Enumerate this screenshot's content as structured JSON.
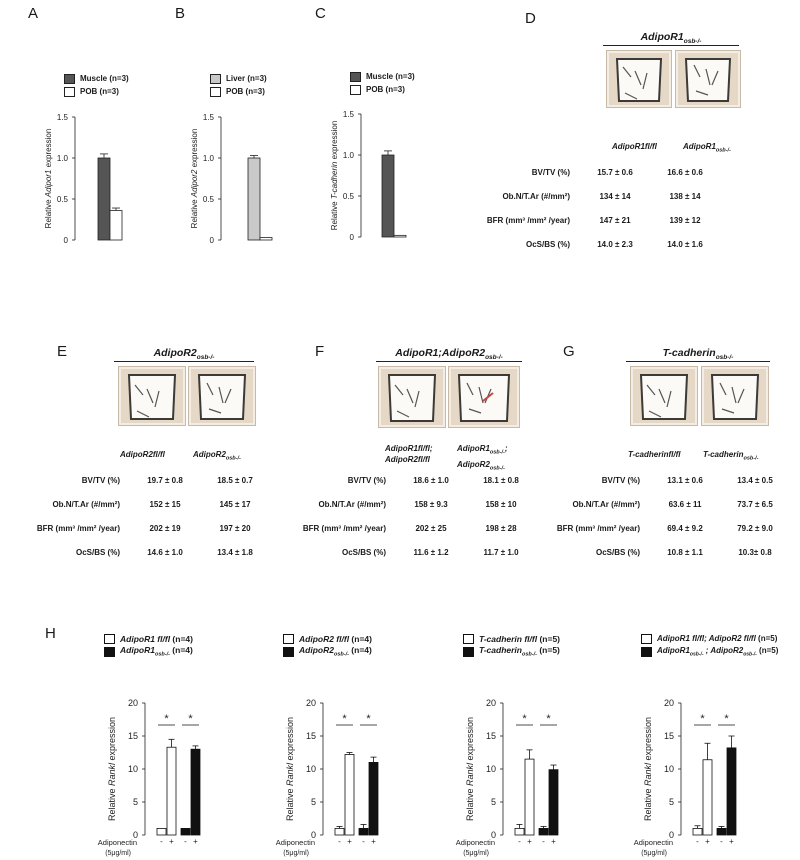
{
  "panel_letters": {
    "A": "A",
    "B": "B",
    "C": "C",
    "D": "D",
    "E": "E",
    "F": "F",
    "G": "G",
    "H": "H"
  },
  "panel_A": {
    "legend": [
      "Muscle (n=3)",
      "POB (n=3)"
    ],
    "ylabel_pre": "Relative ",
    "ylabel_gene": "Adipor1",
    "ylabel_post": " expression"
  },
  "panel_B": {
    "legend": [
      "Liver (n=3)",
      "POB (n=3)"
    ],
    "ylabel_pre": "Relative ",
    "ylabel_gene": "Adipor2",
    "ylabel_post": " expression"
  },
  "panel_C": {
    "legend": [
      "Muscle (n=3)",
      "POB (n=3)"
    ],
    "ylabel_pre": "Relative ",
    "ylabel_gene": "T-cadherin",
    "ylabel_post": " expression"
  },
  "panel_D": {
    "header_main": "AdipoR1",
    "header_sub": "osb-/-",
    "col1": "AdipoR1fl/fl",
    "col2_main": "AdipoR1",
    "col2_sub": "osb-/-",
    "rows": [
      {
        "label": "BV/TV (%)",
        "v1": "15.7 ± 0.6",
        "v2": "16.6 ± 0.6"
      },
      {
        "label": "Ob.N/T.Ar (#/mm²)",
        "v1": "134 ± 14",
        "v2": "138 ± 14"
      },
      {
        "label": "BFR (mm³ /mm² /year)",
        "v1": "147 ± 21",
        "v2": "139 ± 12"
      },
      {
        "label": "OcS/BS (%)",
        "v1": "14.0 ± 2.3",
        "v2": "14.0 ± 1.6"
      }
    ]
  },
  "panel_E": {
    "header_main": "AdipoR2",
    "header_sub": "osb-/-",
    "col1": "AdipoR2fl/fl",
    "col2_main": "AdipoR2",
    "col2_sub": "osb-/-",
    "rows": [
      {
        "label": "BV/TV (%)",
        "v1": "19.7 ± 0.8",
        "v2": "18.5 ± 0.7"
      },
      {
        "label": "Ob.N/T.Ar (#/mm²)",
        "v1": "152 ± 15",
        "v2": "145 ± 17"
      },
      {
        "label": "BFR (mm³ /mm² /year)",
        "v1": "202 ± 19",
        "v2": "197 ± 20"
      },
      {
        "label": "OcS/BS (%)",
        "v1": "14.6 ± 1.0",
        "v2": "13.4 ± 1.8"
      }
    ]
  },
  "panel_F": {
    "header_main": "AdipoR1;AdipoR2",
    "header_sub": "osb-/-",
    "col1_line1": "AdipoR1fl/fl;",
    "col1_line2": "AdipoR2fl/fl",
    "col2_line1_main": "AdipoR1",
    "col2_line1_sub": "osb-/-",
    "col2_line1_end": ";",
    "col2_line2_main": "AdipoR2",
    "col2_line2_sub": "osb-/-",
    "rows": [
      {
        "label": "BV/TV (%)",
        "v1": "18.6 ± 1.0",
        "v2": "18.1 ± 0.8"
      },
      {
        "label": "Ob.N/T.Ar (#/mm²)",
        "v1": "158 ± 9.3",
        "v2": "158 ± 10"
      },
      {
        "label": "BFR (mm³ /mm² /year)",
        "v1": "202 ± 25",
        "v2": "198 ± 28"
      },
      {
        "label": "OcS/BS (%)",
        "v1": "11.6 ± 1.2",
        "v2": "11.7 ± 1.0"
      }
    ]
  },
  "panel_G": {
    "header_main": "T-cadherin",
    "header_sub": "osb-/-",
    "col1": "T-cadherinfl/fl",
    "col2_main": "T-cadherin",
    "col2_sub": "osb-/-",
    "rows": [
      {
        "label": "BV/TV (%)",
        "v1": "13.1 ± 0.6",
        "v2": "13.4 ± 0.5"
      },
      {
        "label": "Ob.N/T.Ar (#/mm²)",
        "v1": "63.6 ± 11",
        "v2": "73.7 ± 6.5"
      },
      {
        "label": "BFR (mm³ /mm² /year)",
        "v1": "69.4 ± 9.2",
        "v2": "79.2 ± 9.0"
      },
      {
        "label": "OcS/BS (%)",
        "v1": "10.8 ± 1.1",
        "v2": "10.3± 0.8"
      }
    ]
  },
  "panel_H_common": {
    "ylabel_pre": "Relative ",
    "ylabel_gene": "Rankl",
    "ylabel_post": " expression",
    "xlabel_line1": "Adiponectin",
    "xlabel_line2": "(5μg/ml)",
    "sig": "*",
    "minus": "-",
    "plus": "+"
  },
  "panel_H_legends": [
    {
      "l1_main": "AdipoR1 fl/fl",
      "l1_end": "  (n=4)",
      "l2_main": "AdipoR1",
      "l2_sub": "osb-/-",
      "l2_end": "  (n=4)"
    },
    {
      "l1_main": "AdipoR2 fl/fl",
      "l1_end": " (n=4)",
      "l2_main": "AdipoR2",
      "l2_sub": "osb-/-",
      "l2_end": " (n=4)"
    },
    {
      "l1_main": "T-cadherin fl/fl",
      "l1_end": "  (n=5)",
      "l2_main": "T-cadherin",
      "l2_sub": "osb-/-",
      "l2_end": "  (n=5)"
    },
    {
      "l1_main": "AdipoR1 fl/fl; AdipoR2 fl/fl",
      "l1_end": " (n=5)",
      "l2_main": "AdipoR1",
      "l2_sub": "osb-/-",
      "l2_mid": " ; AdipoR2",
      "l2_sub2": "osb-/-",
      "l2_end": " (n=5)"
    }
  ],
  "colors": {
    "dark_bar": "#555555",
    "light_bar": "#c9c9c9",
    "black_bar": "#111111",
    "white_bar": "#ffffff"
  },
  "chart_data": [
    {
      "id": "A",
      "type": "bar",
      "ylim": [
        0,
        1.5
      ],
      "yticks": [
        0,
        0.5,
        1.0,
        1.5
      ],
      "ytick_labels": [
        "0",
        "0.5",
        "1.0",
        "1.5"
      ],
      "series": [
        {
          "name": "Muscle (n=3)",
          "values": [
            1.0
          ],
          "err": [
            0.05
          ],
          "color": "#555555"
        },
        {
          "name": "POB (n=3)",
          "values": [
            0.36
          ],
          "err": [
            0.03
          ],
          "color": "#ffffff"
        }
      ]
    },
    {
      "id": "B",
      "type": "bar",
      "ylim": [
        0,
        1.5
      ],
      "yticks": [
        0,
        0.5,
        1.0,
        1.5
      ],
      "ytick_labels": [
        "0",
        "0.5",
        "1.0",
        "1.5"
      ],
      "series": [
        {
          "name": "Liver (n=3)",
          "values": [
            1.0
          ],
          "err": [
            0.03
          ],
          "color": "#c9c9c9"
        },
        {
          "name": "POB (n=3)",
          "values": [
            0.03
          ],
          "err": [
            0.0
          ],
          "color": "#ffffff"
        }
      ]
    },
    {
      "id": "C",
      "type": "bar",
      "ylim": [
        0,
        1.5
      ],
      "yticks": [
        0,
        0.5,
        1.0,
        1.5
      ],
      "ytick_labels": [
        "0",
        "0.5",
        "1.0",
        "1.5"
      ],
      "series": [
        {
          "name": "Muscle (n=3)",
          "values": [
            1.0
          ],
          "err": [
            0.05
          ],
          "color": "#555555"
        },
        {
          "name": "POB (n=3)",
          "values": [
            0.02
          ],
          "err": [
            0.0
          ],
          "color": "#ffffff"
        }
      ]
    },
    {
      "id": "H1",
      "type": "bar",
      "ylim": [
        0,
        20
      ],
      "yticks": [
        0,
        5,
        10,
        15,
        20
      ],
      "ytick_labels": [
        "0",
        "5",
        "10",
        "15",
        "20"
      ],
      "categories": [
        "-",
        "+"
      ],
      "series": [
        {
          "name": "AdipoR1 fl/fl",
          "values": [
            1.0,
            13.3
          ],
          "err": [
            0.0,
            1.2
          ],
          "color": "#ffffff"
        },
        {
          "name": "AdipoR1 osb-/-",
          "values": [
            1.0,
            13.0
          ],
          "err": [
            0.0,
            0.5
          ],
          "color": "#111111"
        }
      ]
    },
    {
      "id": "H2",
      "type": "bar",
      "ylim": [
        0,
        20
      ],
      "yticks": [
        0,
        5,
        10,
        15,
        20
      ],
      "ytick_labels": [
        "0",
        "5",
        "10",
        "15",
        "20"
      ],
      "categories": [
        "-",
        "+"
      ],
      "series": [
        {
          "name": "AdipoR2 fl/fl",
          "values": [
            1.0,
            12.2
          ],
          "err": [
            0.3,
            0.3
          ],
          "color": "#ffffff"
        },
        {
          "name": "AdipoR2 osb-/-",
          "values": [
            1.0,
            11.0
          ],
          "err": [
            0.6,
            0.8
          ],
          "color": "#111111"
        }
      ]
    },
    {
      "id": "H3",
      "type": "bar",
      "ylim": [
        0,
        20
      ],
      "yticks": [
        0,
        5,
        10,
        15,
        20
      ],
      "ytick_labels": [
        "0",
        "5",
        "10",
        "15",
        "20"
      ],
      "categories": [
        "-",
        "+"
      ],
      "series": [
        {
          "name": "T-cadherin fl/fl",
          "values": [
            1.0,
            11.5
          ],
          "err": [
            0.6,
            1.4
          ],
          "color": "#ffffff"
        },
        {
          "name": "T-cadherin osb-/-",
          "values": [
            1.0,
            9.9
          ],
          "err": [
            0.3,
            0.7
          ],
          "color": "#111111"
        }
      ]
    },
    {
      "id": "H4",
      "type": "bar",
      "ylim": [
        0,
        20
      ],
      "yticks": [
        0,
        5,
        10,
        15,
        20
      ],
      "ytick_labels": [
        "0",
        "5",
        "10",
        "15",
        "20"
      ],
      "categories": [
        "-",
        "+"
      ],
      "series": [
        {
          "name": "AdipoR1 fl/fl; AdipoR2 fl/fl",
          "values": [
            1.0,
            11.4
          ],
          "err": [
            0.4,
            2.5
          ],
          "color": "#ffffff"
        },
        {
          "name": "AdipoR1 osb-/- ; AdipoR2 osb-/-",
          "values": [
            1.0,
            13.2
          ],
          "err": [
            0.3,
            1.8
          ],
          "color": "#111111"
        }
      ]
    }
  ]
}
